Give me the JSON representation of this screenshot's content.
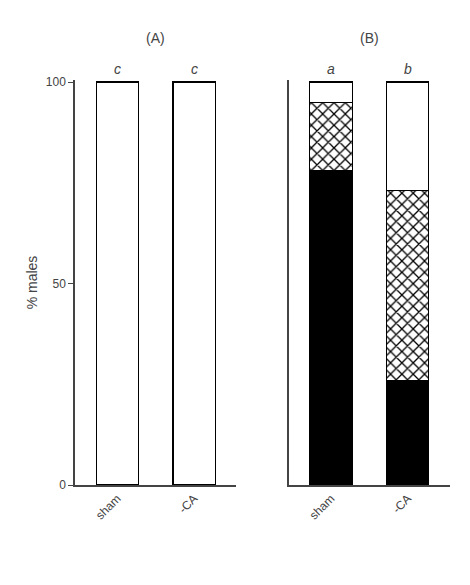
{
  "chart_data": [
    {
      "type": "bar",
      "title": "(A)",
      "stacked": true,
      "categories": [
        "sham",
        "-CA"
      ],
      "series": [
        {
          "color": "#000000",
          "values": [
            0,
            0
          ]
        },
        {
          "color": "#ffffff",
          "marker": "x",
          "values": [
            0,
            0
          ]
        },
        {
          "color": "#ffffff",
          "values": [
            100,
            100
          ]
        }
      ],
      "annotations": [
        {
          "x": "sham",
          "text": "c"
        },
        {
          "x": "-CA",
          "text": "c"
        }
      ],
      "y_label": "% males",
      "ylim": [
        0,
        100.5
      ],
      "yticks": [
        0,
        50,
        100
      ],
      "grid": false
    },
    {
      "type": "bar",
      "title": "(B)",
      "stacked": true,
      "categories": [
        "sham",
        "-CA"
      ],
      "series": [
        {
          "color": "#000000",
          "values": [
            78,
            26
          ]
        },
        {
          "color": "#ffffff",
          "marker": "x",
          "values": [
            17,
            47
          ]
        },
        {
          "color": "#ffffff",
          "values": [
            5,
            27
          ]
        }
      ],
      "annotations": [
        {
          "x": "sham",
          "text": "a"
        },
        {
          "x": "-CA",
          "text": "b"
        }
      ],
      "ylim": [
        0,
        100.5
      ],
      "yticks": [
        0,
        50,
        100
      ],
      "grid": false,
      "tick_labels": "x"
    }
  ]
}
